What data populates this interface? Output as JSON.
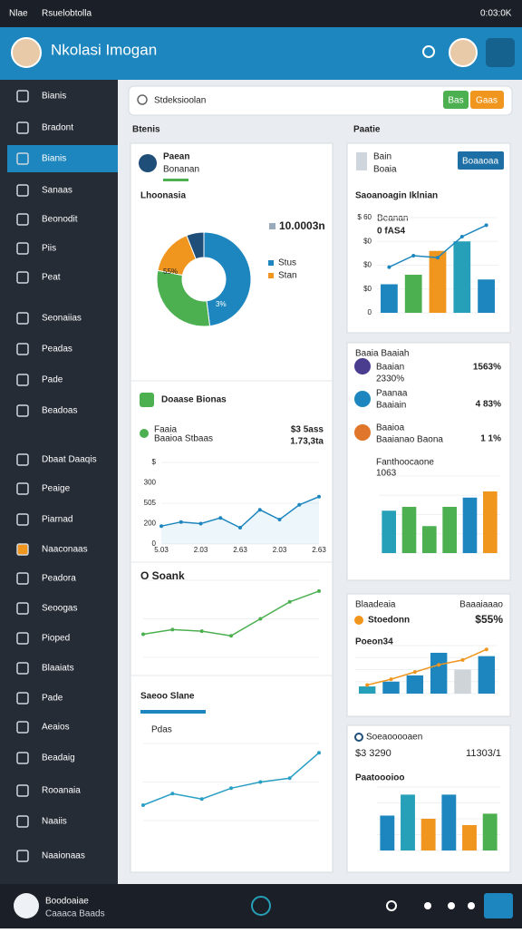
{
  "status_bar": {
    "left": "Nlae",
    "app": "Rsuelobtolla",
    "time": "0:03:0K"
  },
  "header": {
    "title": "Nkolasi Imogan"
  },
  "sidebar": {
    "items": [
      "Bianis",
      "Bradont",
      "Bianis",
      "Sanaas",
      "Beonodit",
      "Piis",
      "Peat",
      "Seonaiias",
      "Peadas",
      "Pade",
      "Beadoas",
      "Dbaat Daaqis",
      "Peaige",
      "Piarnad",
      "Naaconaas",
      "Peadora",
      "Seoogas",
      "Pioped",
      "Blaaiats",
      "Pade",
      "Aeaios",
      "Beadaig",
      "Rooanaia",
      "Naaiis",
      "Naaionaas"
    ]
  },
  "search": {
    "placeholder": "Stdeksioolan",
    "buttons": [
      "Bas",
      "Gaas"
    ]
  },
  "left_column": {
    "heading": "Btenis",
    "cards": [
      {
        "title": "Paean",
        "subtitle": "Bonanan",
        "chart_title": "Lhoonasia",
        "total": "10.0003n",
        "legend": [
          "Stus",
          "Stan"
        ],
        "annotations": [
          "55%",
          "3%"
        ],
        "chart": {
          "type": "donut",
          "values": [
            48,
            30,
            16,
            6
          ],
          "colors": [
            "#1d86bf",
            "#4caf50",
            "#f0961e",
            "#1f4e79"
          ]
        }
      },
      {
        "title": "Doaase Bionas",
        "row_label": "Faaia",
        "row_sub": "Baaioa Stbaas",
        "row_value": "$3 5ass",
        "row_value_sub": "1.73,3ta",
        "chart": {
          "type": "line",
          "fill": true,
          "color": "#1d86bf",
          "ylim": [
            0,
            100
          ],
          "values": [
            22,
            27,
            25,
            32,
            20,
            42,
            30,
            48,
            58
          ],
          "y_labels": [
            "$",
            "300",
            "505",
            "200",
            "0"
          ],
          "x_labels": [
            "5.03",
            "2.03",
            "2.63",
            "2.03",
            "2.63"
          ]
        }
      },
      {
        "title": "O Soank",
        "chart": {
          "type": "line",
          "color": "#4caf50",
          "ylim": [
            0,
            100
          ],
          "values": [
            30,
            36,
            34,
            28,
            50,
            72,
            86
          ]
        }
      },
      {
        "title": "Saeoo Slane",
        "subtitle": "Pdas",
        "chart": {
          "type": "line",
          "color": "#2a9fc4",
          "ylim": [
            0,
            100
          ],
          "values": [
            20,
            35,
            28,
            42,
            50,
            55,
            88
          ]
        }
      }
    ]
  },
  "right_column": {
    "heading": "Paatie",
    "cards": [
      {
        "title": "Bain",
        "subtitle": "Boaia",
        "button": "Boaaoaa",
        "chart_title": "Saoanoagin Iklnian",
        "legend": "Beanan",
        "legend_value": "0 fAS4",
        "chart": {
          "type": "bar",
          "ylim": [
            0,
            100
          ],
          "values": [
            30,
            40,
            65,
            75,
            35
          ],
          "colors": [
            "#1d86bf",
            "#4caf50",
            "#f0961e",
            "#26a0b8",
            "#1d86bf"
          ],
          "line_values": [
            48,
            60,
            58,
            80,
            92
          ],
          "line_color": "#1d86bf",
          "y_labels": [
            "$ 60",
            "$0",
            "$0",
            "$0",
            "0"
          ]
        }
      },
      {
        "title": "Baaia Baaiah",
        "items": [
          {
            "label": "Baaian",
            "value": "2330%",
            "change": "1563%"
          },
          {
            "label": "Paanaa",
            "value": "Baaiain",
            "change": "4 83%"
          },
          {
            "label": "Baaioa",
            "value": "Baaianao Baona",
            "change": "1 1%"
          }
        ],
        "chart_title": "Fanthoocaone",
        "chart_value": "1063",
        "chart": {
          "type": "bar",
          "ylim": [
            0,
            100
          ],
          "values": [
            55,
            60,
            35,
            60,
            72,
            80
          ],
          "colors": [
            "#26a0b8",
            "#4caf50",
            "#4caf50",
            "#4caf50",
            "#1d86bf",
            "#f0961e"
          ]
        }
      },
      {
        "title": "Blaadeaia",
        "title_right": "Baaaiaaao",
        "row_label": "Stoedonn",
        "row_value": "$55%",
        "chart_title": "Poeon34",
        "chart": {
          "type": "bar",
          "ylim": [
            0,
            100
          ],
          "values": [
            15,
            25,
            38,
            85,
            50,
            78
          ],
          "colors": [
            "#26a0b8",
            "#1d86bf",
            "#1d86bf",
            "#1d86bf",
            "#cfd4d8",
            "#1d86bf"
          ],
          "line_values": [
            18,
            30,
            45,
            60,
            70,
            92
          ],
          "line_color": "#f0961e"
        }
      },
      {
        "title": "Soeaooooaen",
        "row_label": "$3 3290",
        "row_value": "11303/1",
        "chart_title": "Paatoooioo",
        "chart": {
          "type": "bar",
          "ylim": [
            0,
            100
          ],
          "values": [
            55,
            88,
            50,
            88,
            40,
            58
          ],
          "colors": [
            "#1d86bf",
            "#26a0b8",
            "#f0961e",
            "#1d86bf",
            "#f0961e",
            "#4caf50"
          ]
        }
      }
    ]
  },
  "bottom_bar": {
    "title": "Boodoaiae",
    "subtitle": "Caaaca Baads"
  }
}
